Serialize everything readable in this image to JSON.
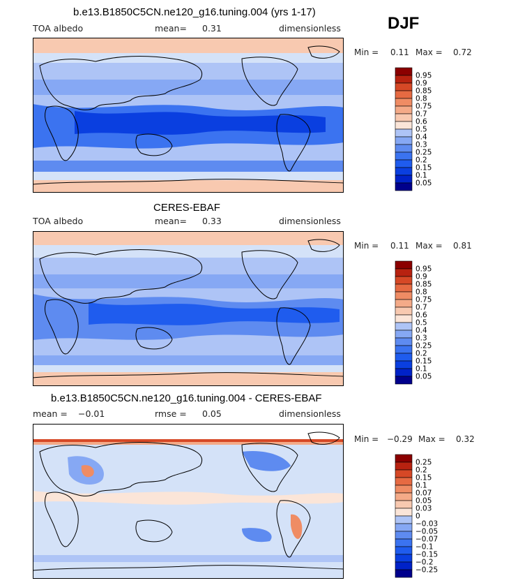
{
  "season": "DJF",
  "colors": {
    "scale": [
      "#00008c",
      "#0022c8",
      "#0a3fe0",
      "#1f5cee",
      "#3b73f0",
      "#5e8bf0",
      "#86a8f4",
      "#aec4f6",
      "#d4e2f8",
      "#fbe5d8",
      "#f8c9b0",
      "#f4aa88",
      "#ef8c64",
      "#e66a42",
      "#d64826",
      "#b82210",
      "#8b0000"
    ]
  },
  "panels": [
    {
      "title": "b.e13.B1850C5CN.ne120_g16.tuning.004 (yrs 1-17)",
      "left_label": "TOA albedo",
      "mid_label": "mean=",
      "mid_value": "0.31",
      "right_label": "dimensionless",
      "min_label": "Min =",
      "min_value": "0.11",
      "max_label": "Max =",
      "max_value": "0.72",
      "levels": [
        "0.95",
        "0.9",
        "0.85",
        "0.8",
        "0.75",
        "0.7",
        "0.6",
        "0.5",
        "0.4",
        "0.3",
        "0.25",
        "0.2",
        "0.15",
        "0.1",
        "0.05"
      ]
    },
    {
      "title": "CERES-EBAF",
      "left_label": "TOA albedo",
      "mid_label": "mean=",
      "mid_value": "0.33",
      "right_label": "dimensionless",
      "min_label": "Min =",
      "min_value": "0.11",
      "max_label": "Max =",
      "max_value": "0.81",
      "levels": [
        "0.95",
        "0.9",
        "0.85",
        "0.8",
        "0.75",
        "0.7",
        "0.6",
        "0.5",
        "0.4",
        "0.3",
        "0.25",
        "0.2",
        "0.15",
        "0.1",
        "0.05"
      ]
    },
    {
      "title": "b.e13.B1850C5CN.ne120_g16.tuning.004 - CERES-EBAF",
      "left_label": "mean =",
      "left_value": "−0.01",
      "mid_label": "rmse =",
      "mid_value": "0.05",
      "right_label": "dimensionless",
      "min_label": "Min =",
      "min_value": "−0.29",
      "max_label": "Max =",
      "max_value": "0.32",
      "levels": [
        "0.25",
        "0.2",
        "0.15",
        "0.1",
        "0.07",
        "0.05",
        "0.03",
        "0",
        "−0.03",
        "−0.05",
        "−0.07",
        "−0.1",
        "−0.15",
        "−0.2",
        "−0.25"
      ]
    }
  ],
  "chart_data": [
    {
      "type": "heatmap",
      "title": "b.e13.B1850C5CN.ne120_g16.tuning.004 (yrs 1-17)",
      "variable": "TOA albedo",
      "units": "dimensionless",
      "mean": 0.31,
      "min": 0.11,
      "max": 0.72,
      "contour_levels": [
        0.05,
        0.1,
        0.15,
        0.2,
        0.25,
        0.3,
        0.4,
        0.5,
        0.6,
        0.7,
        0.75,
        0.8,
        0.85,
        0.9,
        0.95
      ]
    },
    {
      "type": "heatmap",
      "title": "CERES-EBAF",
      "variable": "TOA albedo",
      "units": "dimensionless",
      "mean": 0.33,
      "min": 0.11,
      "max": 0.81,
      "contour_levels": [
        0.05,
        0.1,
        0.15,
        0.2,
        0.25,
        0.3,
        0.4,
        0.5,
        0.6,
        0.7,
        0.75,
        0.8,
        0.85,
        0.9,
        0.95
      ]
    },
    {
      "type": "heatmap",
      "title": "b.e13.B1850C5CN.ne120_g16.tuning.004 - CERES-EBAF",
      "units": "dimensionless",
      "mean": -0.01,
      "rmse": 0.05,
      "min": -0.29,
      "max": 0.32,
      "contour_levels": [
        -0.25,
        -0.2,
        -0.15,
        -0.1,
        -0.07,
        -0.05,
        -0.03,
        0,
        0.03,
        0.05,
        0.07,
        0.1,
        0.15,
        0.2,
        0.25
      ]
    }
  ]
}
